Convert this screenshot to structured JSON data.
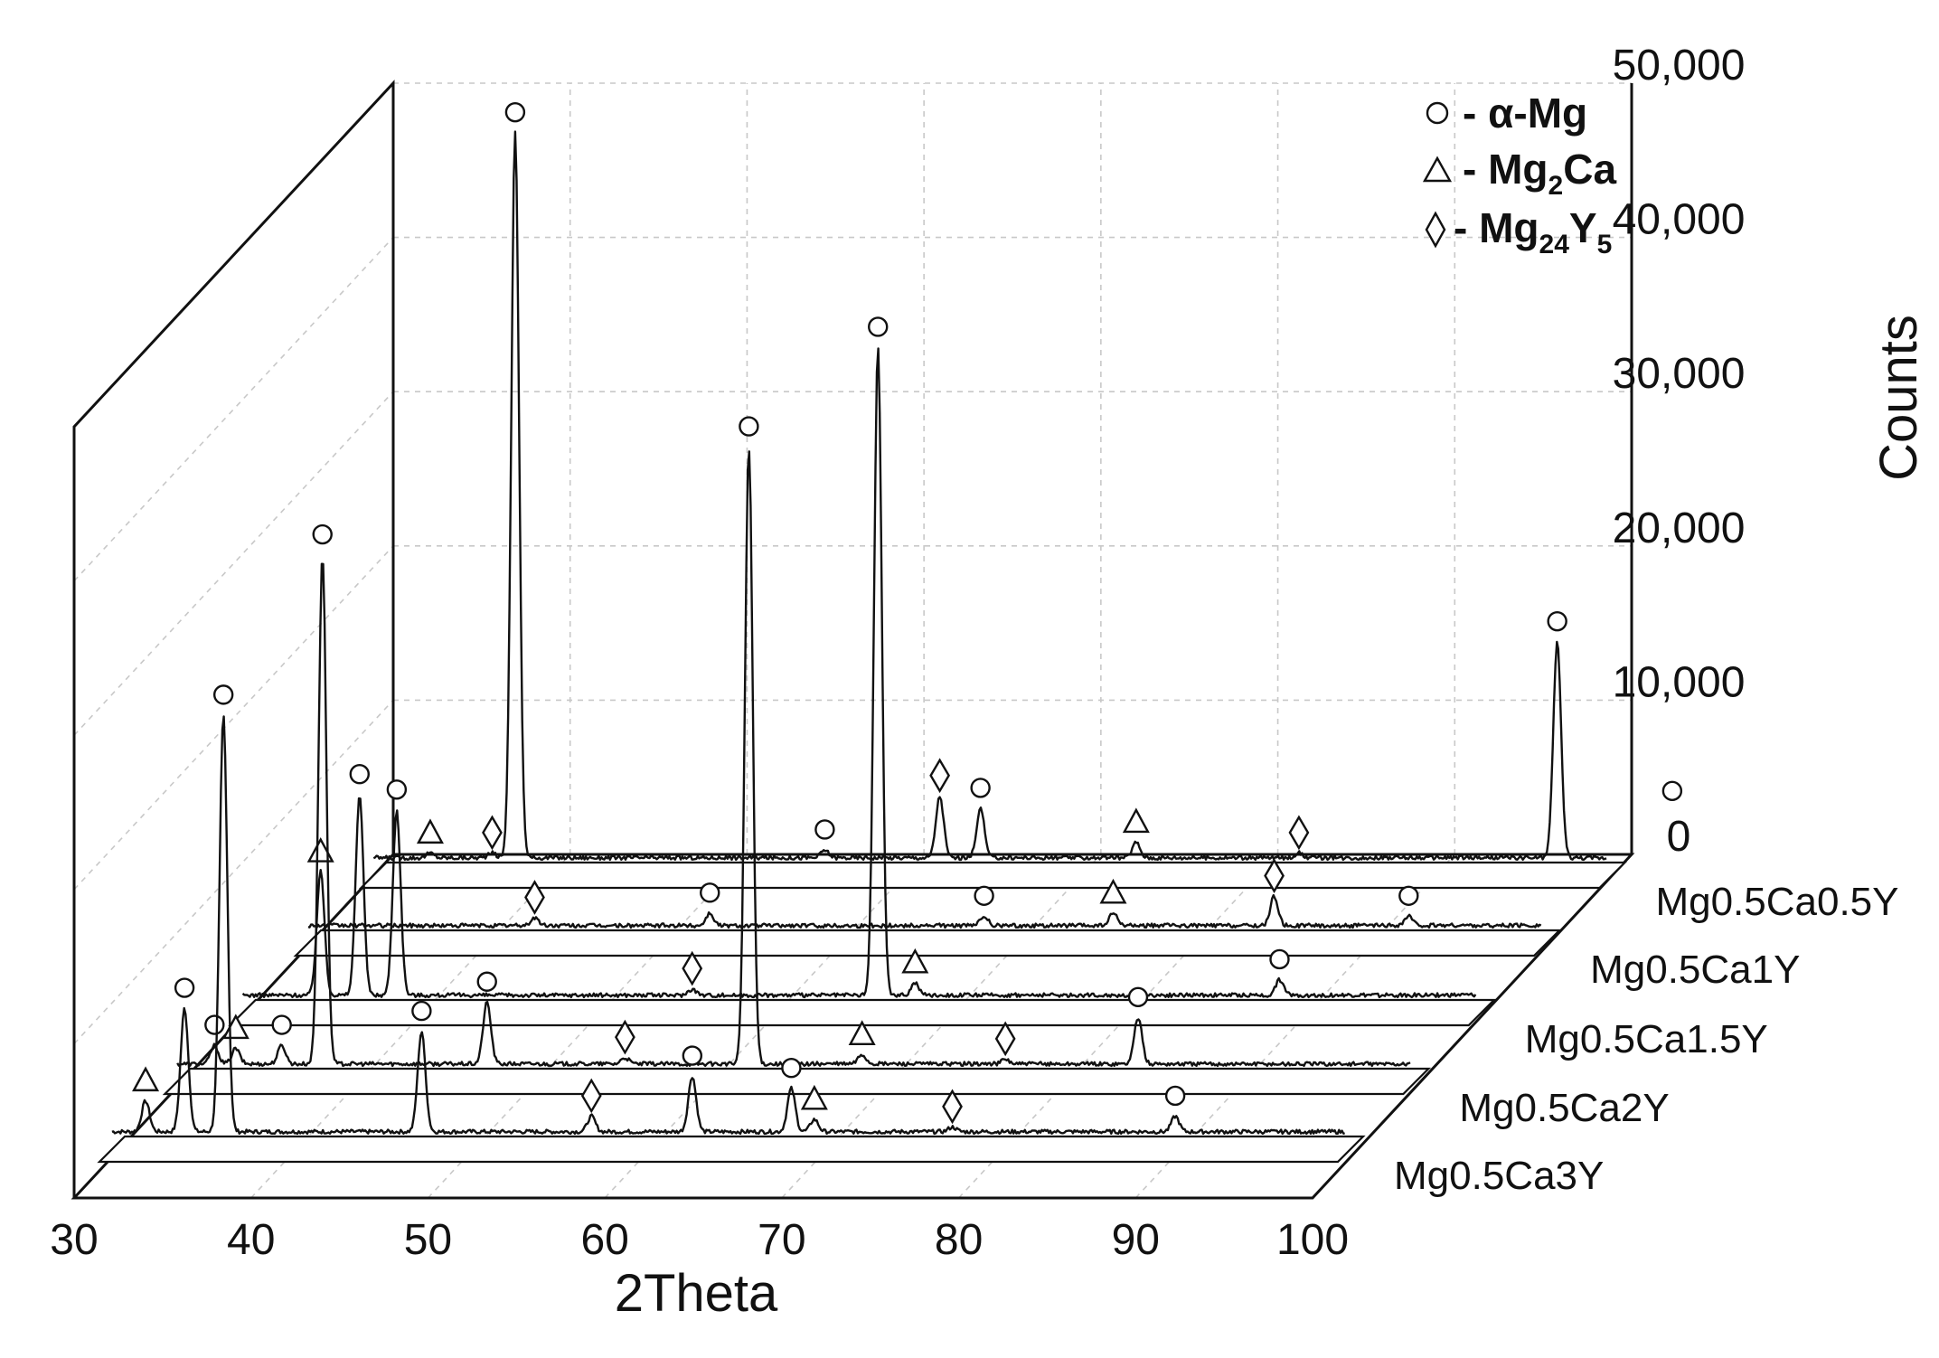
{
  "chart_data": {
    "type": "line",
    "title": "",
    "xlabel": "2Theta",
    "ylabel": "Counts",
    "xlim": [
      30,
      100
    ],
    "ylim": [
      0,
      50000
    ],
    "x_ticks": [
      "30",
      "40",
      "50",
      "60",
      "70",
      "80",
      "90",
      "100"
    ],
    "y_ticks": [
      "0",
      "10,000",
      "20,000",
      "30,000",
      "40,000",
      "50,000"
    ],
    "legend": [
      {
        "symbol": "circle",
        "prefix": "- ",
        "name": "α-Mg",
        "main": "α-Mg",
        "sub1": "",
        "mid": "",
        "sub2": ""
      },
      {
        "symbol": "triangle",
        "prefix": "- ",
        "name": "Mg2Ca",
        "main": "Mg",
        "sub1": "2",
        "mid": "Ca",
        "sub2": ""
      },
      {
        "symbol": "diamond",
        "prefix": "- ",
        "name": "Mg24Y5",
        "main": "Mg",
        "sub1": "24",
        "mid": "Y",
        "sub2": "5"
      }
    ],
    "series": [
      {
        "name": "Mg0.5Ca3Y",
        "peaks": [
          {
            "x": 32.2,
            "y": 2000,
            "marker": "triangle"
          },
          {
            "x": 34.4,
            "y": 8000,
            "marker": "circle"
          },
          {
            "x": 36.6,
            "y": 27000,
            "marker": "circle"
          },
          {
            "x": 47.8,
            "y": 6500,
            "marker": "circle"
          },
          {
            "x": 57.4,
            "y": 1000,
            "marker": "diamond"
          },
          {
            "x": 63.1,
            "y": 3600,
            "marker": "circle"
          },
          {
            "x": 68.7,
            "y": 2800,
            "marker": "circle"
          },
          {
            "x": 70.0,
            "y": 800,
            "marker": "triangle"
          },
          {
            "x": 77.8,
            "y": 300,
            "marker": "diamond"
          },
          {
            "x": 90.4,
            "y": 1000,
            "marker": "circle"
          }
        ]
      },
      {
        "name": "Mg0.5Ca2Y",
        "peaks": [
          {
            "x": 32.4,
            "y": 1200,
            "marker": "circle"
          },
          {
            "x": 33.6,
            "y": 1000,
            "marker": "triangle"
          },
          {
            "x": 36.2,
            "y": 1200,
            "marker": "circle"
          },
          {
            "x": 38.5,
            "y": 33000,
            "marker": "circle"
          },
          {
            "x": 47.8,
            "y": 4000,
            "marker": "circle"
          },
          {
            "x": 55.6,
            "y": 400,
            "marker": "diamond"
          },
          {
            "x": 62.6,
            "y": 40000,
            "marker": "circle"
          },
          {
            "x": 69.0,
            "y": 600,
            "marker": "triangle"
          },
          {
            "x": 77.1,
            "y": 300,
            "marker": "diamond"
          },
          {
            "x": 84.6,
            "y": 3000,
            "marker": "circle"
          }
        ]
      },
      {
        "name": "Mg0.5Ca1.5Y",
        "peaks": [
          {
            "x": 34.7,
            "y": 8000,
            "marker": "triangle"
          },
          {
            "x": 36.9,
            "y": 13000,
            "marker": "circle"
          },
          {
            "x": 39.0,
            "y": 12000,
            "marker": "circle"
          },
          {
            "x": 55.7,
            "y": 400,
            "marker": "diamond"
          },
          {
            "x": 66.2,
            "y": 42000,
            "marker": "circle"
          },
          {
            "x": 68.3,
            "y": 800,
            "marker": "triangle"
          },
          {
            "x": 88.9,
            "y": 1000,
            "marker": "circle"
          }
        ]
      },
      {
        "name": "Mg0.5Ca1Y",
        "peaks": [
          {
            "x": 43.1,
            "y": 500,
            "marker": "diamond"
          },
          {
            "x": 53.0,
            "y": 800,
            "marker": "circle"
          },
          {
            "x": 68.5,
            "y": 600,
            "marker": "circle"
          },
          {
            "x": 75.8,
            "y": 800,
            "marker": "triangle"
          },
          {
            "x": 84.9,
            "y": 1900,
            "marker": "diamond"
          },
          {
            "x": 92.5,
            "y": 600,
            "marker": "circle"
          }
        ]
      },
      {
        "name": "Mg0.5Ca0.5Y",
        "peaks": [
          {
            "x": 33.5,
            "y": 300,
            "marker": "triangle"
          },
          {
            "x": 37.0,
            "y": 300,
            "marker": "diamond"
          },
          {
            "x": 38.3,
            "y": 47000,
            "marker": "circle"
          },
          {
            "x": 55.8,
            "y": 500,
            "marker": "circle"
          },
          {
            "x": 62.3,
            "y": 4000,
            "marker": "diamond"
          },
          {
            "x": 64.6,
            "y": 3200,
            "marker": "circle"
          },
          {
            "x": 73.4,
            "y": 1000,
            "marker": "triangle"
          },
          {
            "x": 82.6,
            "y": 300,
            "marker": "diamond"
          },
          {
            "x": 97.2,
            "y": 14000,
            "marker": "circle"
          },
          {
            "x": 103.7,
            "y": 3000,
            "marker": "circle"
          }
        ]
      }
    ]
  }
}
